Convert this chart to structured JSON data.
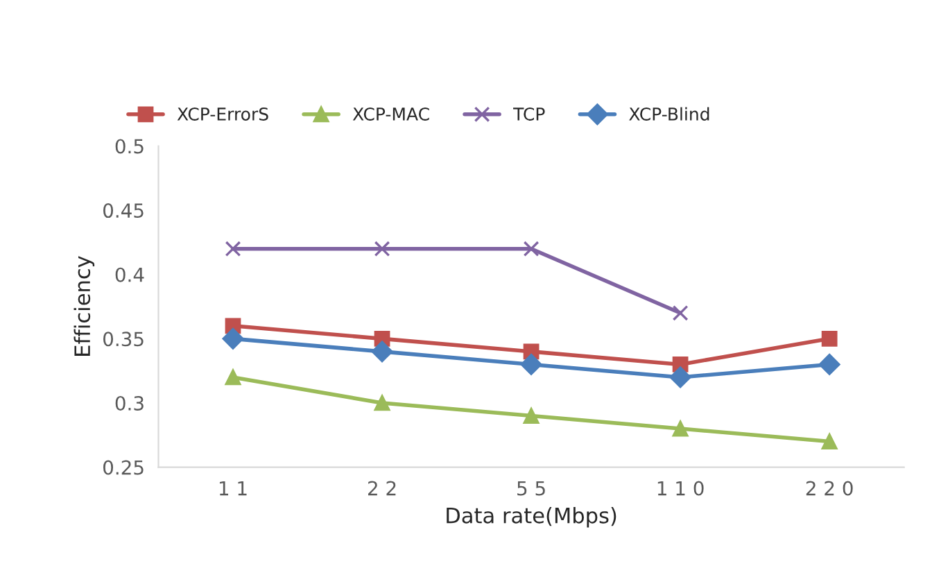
{
  "chart_data": {
    "type": "line",
    "xlabel": "Data rate(Mbps)",
    "ylabel": "Efficiency",
    "categories": [
      "1 1",
      "2 2",
      "5 5",
      "1 1 0",
      "2 2 0"
    ],
    "series": [
      {
        "name": "XCP-ErrorS",
        "color": "#c0504d",
        "marker": "square",
        "values": [
          0.36,
          0.35,
          0.34,
          0.33,
          0.35
        ]
      },
      {
        "name": "XCP-MAC",
        "color": "#9bbb59",
        "marker": "triangle",
        "values": [
          0.32,
          0.3,
          0.29,
          0.28,
          0.27
        ]
      },
      {
        "name": "TCP",
        "color": "#8064a2",
        "marker": "cross",
        "values": [
          0.42,
          0.42,
          0.42,
          0.37,
          null
        ]
      },
      {
        "name": "XCP-Blind",
        "color": "#4a7ebb",
        "marker": "diamond",
        "values": [
          0.35,
          0.34,
          0.33,
          0.32,
          0.33
        ]
      }
    ],
    "ylim": [
      0.25,
      0.5
    ],
    "yticks": [
      0.25,
      0.3,
      0.35,
      0.4,
      0.45,
      0.5
    ],
    "grid": false,
    "legend": "top"
  }
}
